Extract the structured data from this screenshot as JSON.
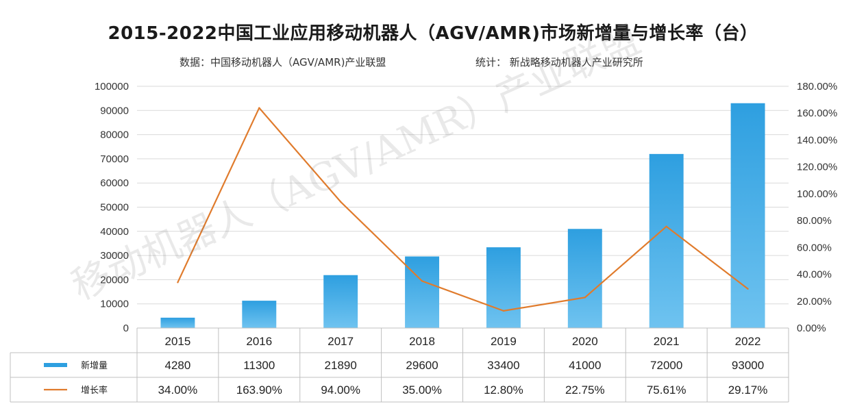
{
  "title": "2015-2022中国工业应用移动机器人（AGV/AMR)市场新增量与增长率（台）",
  "source_left": "数据：中国移动机器人（AGV/AMR)产业联盟",
  "source_right": "统计： 新战略移动机器人产业研究所",
  "watermark": "移动机器人（AGV/AMR）产业联盟",
  "colors": {
    "bar": "#2e9fe0",
    "line": "#e07b2c",
    "grid": "#d9d9d9"
  },
  "chart_data": {
    "type": "bar",
    "categories": [
      "2015",
      "2016",
      "2017",
      "2018",
      "2019",
      "2020",
      "2021",
      "2022"
    ],
    "series": [
      {
        "name": "新增量",
        "type": "bar",
        "axis": "left",
        "values": [
          4280,
          11300,
          21890,
          29600,
          33400,
          41000,
          72000,
          93000
        ],
        "labels": [
          "4280",
          "11300",
          "21890",
          "29600",
          "33400",
          "41000",
          "72000",
          "93000"
        ]
      },
      {
        "name": "增长率",
        "type": "line",
        "axis": "right",
        "values": [
          34.0,
          163.9,
          94.0,
          35.0,
          12.8,
          22.75,
          75.61,
          29.17
        ],
        "labels": [
          "34.00%",
          "163.90%",
          "94.00%",
          "35.00%",
          "12.80%",
          "22.75%",
          "75.61%",
          "29.17%"
        ]
      }
    ],
    "ylim_left": [
      0,
      100000
    ],
    "yticks_left": [
      "0",
      "10000",
      "20000",
      "30000",
      "40000",
      "50000",
      "60000",
      "70000",
      "80000",
      "90000",
      "100000"
    ],
    "ylim_right": [
      0,
      180
    ],
    "yticks_right": [
      "0.00%",
      "20.00%",
      "40.00%",
      "60.00%",
      "80.00%",
      "100.00%",
      "120.00%",
      "140.00%",
      "160.00%",
      "180.00%"
    ],
    "grid": true,
    "legend": "data-table"
  }
}
